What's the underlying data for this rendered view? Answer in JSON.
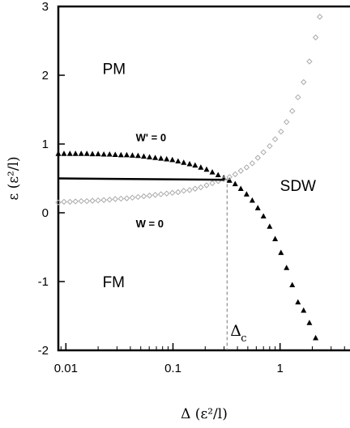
{
  "chart_data": {
    "type": "scatter",
    "xlabel": "Δ (ε²/l)",
    "ylabel": "ε (ε²/l)",
    "xscale": "log",
    "xlim": [
      0.0085,
      4.5
    ],
    "ylim": [
      -2,
      3
    ],
    "xticks": [
      {
        "value": 0.01,
        "label": "0.01"
      },
      {
        "value": 0.1,
        "label": "0.1"
      },
      {
        "value": 1,
        "label": "1"
      }
    ],
    "yticks": [
      {
        "value": -2,
        "label": "-2"
      },
      {
        "value": -1,
        "label": "-1"
      },
      {
        "value": 0,
        "label": "0"
      },
      {
        "value": 1,
        "label": "1"
      },
      {
        "value": 2,
        "label": "2"
      },
      {
        "value": 3,
        "label": "3"
      }
    ],
    "regions": [
      {
        "label": "PM",
        "x": 0.022,
        "y": 2.1
      },
      {
        "label": "FM",
        "x": 0.022,
        "y": -1.0
      },
      {
        "label": "SDW",
        "x": 1.0,
        "y": 0.4
      }
    ],
    "curve_labels": [
      {
        "label": "W' = 0",
        "x": 0.045,
        "y": 1.1
      },
      {
        "label": "W = 0",
        "x": 0.045,
        "y": -0.15
      }
    ],
    "critical_point": {
      "label": "Δ",
      "subscript": "c",
      "x": 0.32
    },
    "series": [
      {
        "name": "",
        "marker": "triangle",
        "color": "#000000",
        "points": [
          [
            0.0085,
            0.86
          ],
          [
            0.0096,
            0.86
          ],
          [
            0.0109,
            0.86
          ],
          [
            0.0123,
            0.86
          ],
          [
            0.0139,
            0.86
          ],
          [
            0.0157,
            0.86
          ],
          [
            0.0177,
            0.855
          ],
          [
            0.02,
            0.855
          ],
          [
            0.0226,
            0.85
          ],
          [
            0.0256,
            0.85
          ],
          [
            0.0289,
            0.845
          ],
          [
            0.0327,
            0.84
          ],
          [
            0.037,
            0.84
          ],
          [
            0.0418,
            0.835
          ],
          [
            0.0472,
            0.83
          ],
          [
            0.0534,
            0.82
          ],
          [
            0.0604,
            0.81
          ],
          [
            0.0683,
            0.8
          ],
          [
            0.0772,
            0.79
          ],
          [
            0.0873,
            0.78
          ],
          [
            0.0987,
            0.77
          ],
          [
            0.1116,
            0.75
          ],
          [
            0.126,
            0.73
          ],
          [
            0.143,
            0.71
          ],
          [
            0.161,
            0.69
          ],
          [
            0.182,
            0.66
          ],
          [
            0.206,
            0.63
          ],
          [
            0.233,
            0.59
          ],
          [
            0.264,
            0.55
          ],
          [
            0.298,
            0.51
          ],
          [
            0.337,
            0.47
          ],
          [
            0.381,
            0.42
          ],
          [
            0.43,
            0.35
          ],
          [
            0.487,
            0.27
          ],
          [
            0.55,
            0.18
          ],
          [
            0.62,
            0.07
          ],
          [
            0.7,
            -0.05
          ],
          [
            0.8,
            -0.2
          ],
          [
            0.9,
            -0.38
          ],
          [
            1.02,
            -0.58
          ],
          [
            1.15,
            -0.8
          ],
          [
            1.3,
            -1.05
          ],
          [
            1.47,
            -1.3
          ],
          [
            1.66,
            -1.42
          ],
          [
            1.88,
            -1.6
          ],
          [
            2.15,
            -1.82
          ]
        ]
      },
      {
        "name": "",
        "marker": "diamond",
        "color": "#aaaaaa",
        "points": [
          [
            0.0085,
            0.15
          ],
          [
            0.0096,
            0.16
          ],
          [
            0.0109,
            0.16
          ],
          [
            0.0123,
            0.165
          ],
          [
            0.0139,
            0.17
          ],
          [
            0.0157,
            0.17
          ],
          [
            0.0177,
            0.175
          ],
          [
            0.02,
            0.18
          ],
          [
            0.0226,
            0.185
          ],
          [
            0.0256,
            0.19
          ],
          [
            0.0289,
            0.2
          ],
          [
            0.0327,
            0.205
          ],
          [
            0.037,
            0.21
          ],
          [
            0.0418,
            0.22
          ],
          [
            0.0472,
            0.23
          ],
          [
            0.0534,
            0.24
          ],
          [
            0.0604,
            0.25
          ],
          [
            0.0683,
            0.26
          ],
          [
            0.0772,
            0.27
          ],
          [
            0.0873,
            0.28
          ],
          [
            0.0987,
            0.29
          ],
          [
            0.1116,
            0.3
          ],
          [
            0.126,
            0.32
          ],
          [
            0.143,
            0.33
          ],
          [
            0.161,
            0.35
          ],
          [
            0.182,
            0.37
          ],
          [
            0.206,
            0.4
          ],
          [
            0.233,
            0.43
          ],
          [
            0.264,
            0.46
          ],
          [
            0.298,
            0.49
          ],
          [
            0.337,
            0.52
          ],
          [
            0.381,
            0.56
          ],
          [
            0.43,
            0.61
          ],
          [
            0.487,
            0.66
          ],
          [
            0.55,
            0.72
          ],
          [
            0.62,
            0.8
          ],
          [
            0.7,
            0.88
          ],
          [
            0.8,
            0.97
          ],
          [
            0.9,
            1.07
          ],
          [
            1.02,
            1.18
          ],
          [
            1.15,
            1.32
          ],
          [
            1.3,
            1.48
          ],
          [
            1.47,
            1.68
          ],
          [
            1.66,
            1.9
          ],
          [
            1.88,
            2.2
          ],
          [
            2.15,
            2.55
          ],
          [
            2.35,
            2.85
          ]
        ]
      },
      {
        "name": "",
        "marker": "line",
        "color": "#000000",
        "points": [
          [
            0.0085,
            0.5
          ],
          [
            0.3,
            0.48
          ]
        ]
      }
    ]
  }
}
